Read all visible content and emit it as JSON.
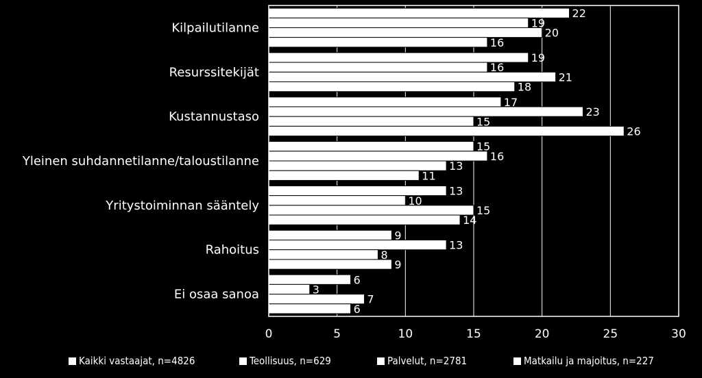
{
  "chart_data": {
    "type": "bar",
    "orientation": "horizontal",
    "categories": [
      "Kilpailutilanne",
      "Resurssitekijät",
      "Kustannustaso",
      "Yleinen suhdannetilanne/taloustilanne",
      "Yritystoiminnan sääntely",
      "Rahoitus",
      "Ei osaa sanoa"
    ],
    "series": [
      {
        "name": "Kaikki vastaajat, n=4826",
        "values": [
          22,
          19,
          17,
          15,
          13,
          9,
          6
        ]
      },
      {
        "name": "Teollisuus, n=629",
        "values": [
          19,
          16,
          23,
          16,
          10,
          13,
          3
        ]
      },
      {
        "name": "Palvelut, n=2781",
        "values": [
          20,
          21,
          15,
          13,
          15,
          8,
          7
        ]
      },
      {
        "name": "Matkailu ja majoitus, n=227",
        "values": [
          16,
          18,
          26,
          11,
          14,
          9,
          6
        ]
      }
    ],
    "xlim": [
      0,
      30
    ],
    "xticks": [
      "0",
      "5",
      "10",
      "15",
      "20",
      "25",
      "30"
    ],
    "grid": true,
    "legend": "bottom",
    "title": "",
    "xlabel": "",
    "ylabel": ""
  },
  "colors": {
    "background": "#000000",
    "bar": "#ffffff",
    "bar_outline": "#000000",
    "text": "#ffffff",
    "plot_border": "#ffffff",
    "grid": "#ffffff"
  }
}
